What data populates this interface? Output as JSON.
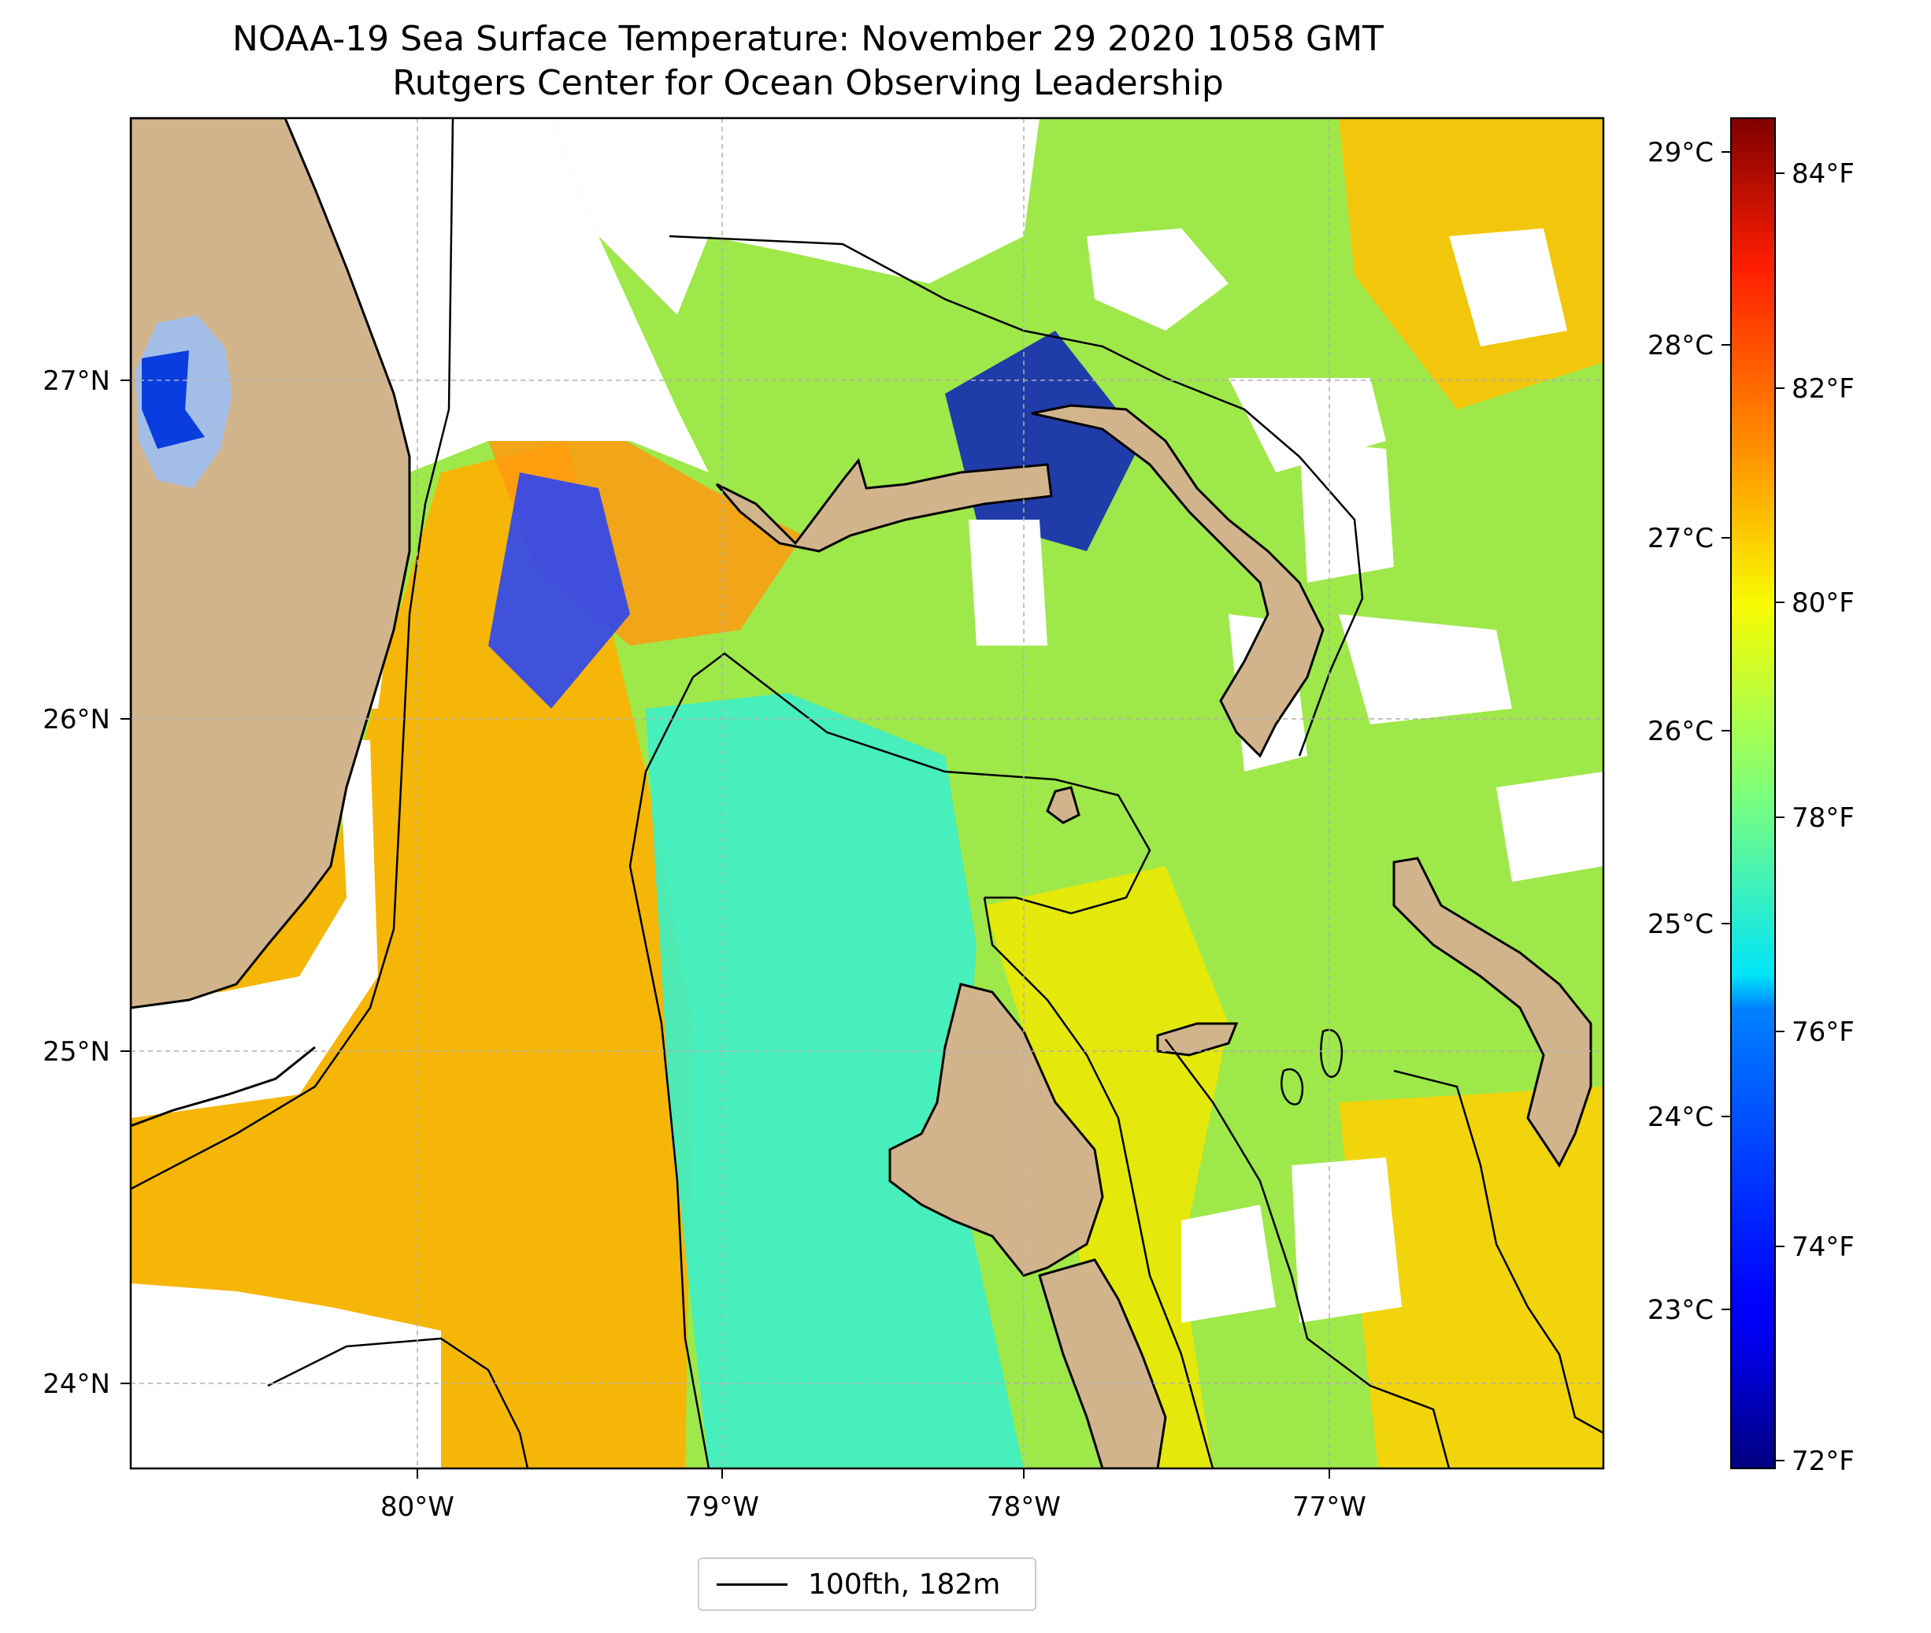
{
  "title": {
    "line1": "NOAA-19 Sea Surface Temperature: November 29 2020 1058 GMT",
    "line2": "Rutgers Center for Ocean Observing Leadership"
  },
  "map": {
    "lon_range": [
      -80.95,
      -76.1
    ],
    "lat_range": [
      23.75,
      27.8
    ],
    "lon_ticks": [
      {
        "value": -80,
        "label": "80°W"
      },
      {
        "value": -79,
        "label": "79°W"
      },
      {
        "value": -78,
        "label": "78°W"
      },
      {
        "value": -77,
        "label": "77°W"
      }
    ],
    "lat_ticks": [
      {
        "value": 27,
        "label": "27°N"
      },
      {
        "value": 26,
        "label": "26°N"
      },
      {
        "value": 25,
        "label": "25°N"
      },
      {
        "value": 24,
        "label": "24°N"
      }
    ],
    "gridlines": true,
    "land_color": "#d2b48c",
    "no_data_color": "#ffffff",
    "lake_color": "#a3bee6"
  },
  "colorbar": {
    "colormap": "jet",
    "range_f": [
      72,
      85
    ],
    "fahrenheit_ticks": [
      {
        "value": 72,
        "label": "72°F"
      },
      {
        "value": 74,
        "label": "74°F"
      },
      {
        "value": 76,
        "label": "76°F"
      },
      {
        "value": 78,
        "label": "78°F"
      },
      {
        "value": 80,
        "label": "80°F"
      },
      {
        "value": 82,
        "label": "82°F"
      },
      {
        "value": 84,
        "label": "84°F"
      }
    ],
    "celsius_ticks": [
      {
        "value": 23,
        "label": "23°C"
      },
      {
        "value": 24,
        "label": "24°C"
      },
      {
        "value": 25,
        "label": "25°C"
      },
      {
        "value": 26,
        "label": "26°C"
      },
      {
        "value": 27,
        "label": "27°C"
      },
      {
        "value": 28,
        "label": "28°C"
      },
      {
        "value": 29,
        "label": "29°C"
      }
    ]
  },
  "legend": {
    "label": "100fth, 182m",
    "location": "below map"
  }
}
